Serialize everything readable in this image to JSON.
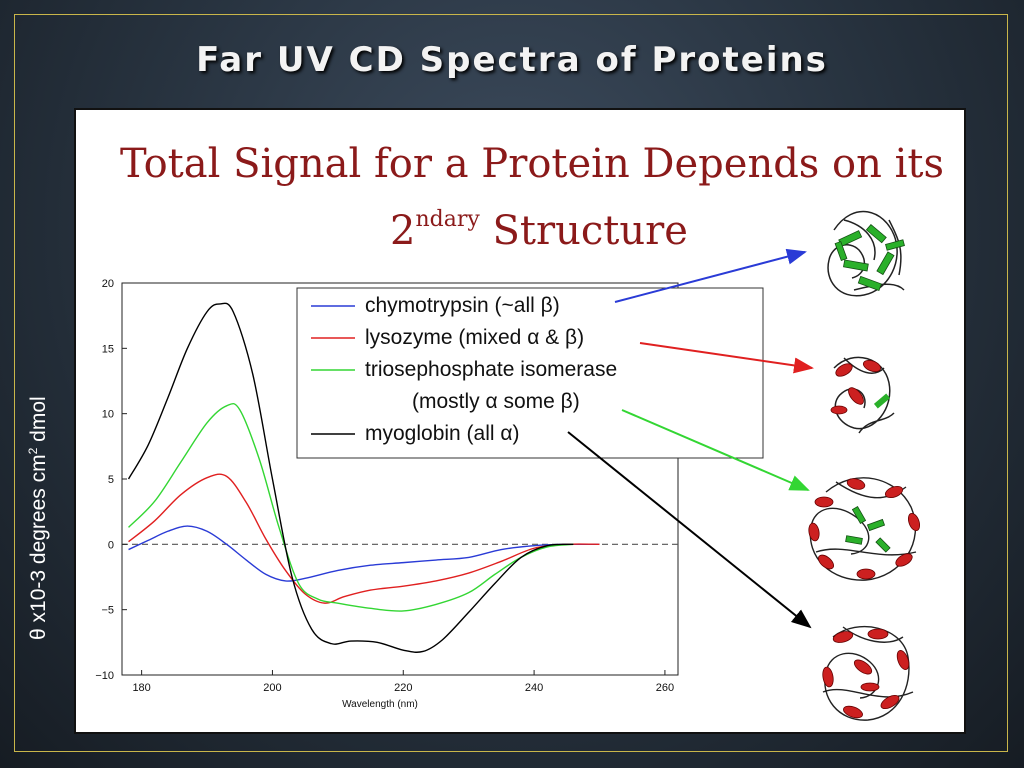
{
  "slide": {
    "title": "Far UV CD Spectra of Proteins",
    "headline_line1": "Total Signal for a Protein Depends on its",
    "headline_prefix": "2",
    "headline_sup": "ndary",
    "headline_word": "Structure"
  },
  "ylabel_parts": {
    "symbol": "θ",
    "main": "x10-3 degrees cm",
    "sup": "2",
    "tail": " dmol"
  },
  "colors": {
    "blue": "#2a3bd6",
    "red": "#e02020",
    "green": "#33d633",
    "black": "#000000",
    "title_red": "#8b1a1a"
  },
  "chart_data": {
    "type": "line",
    "title": "",
    "xlabel": "Wavelength (nm)",
    "ylabel": "θ x10-3 degrees cm2 dmol",
    "xlim": [
      177,
      262
    ],
    "ylim": [
      -10,
      20
    ],
    "xticks": [
      "180",
      "200",
      "220",
      "240",
      "260"
    ],
    "yticks": [
      "−10",
      "−5",
      "0",
      "5",
      "10",
      "15",
      "20"
    ],
    "zero_line": "dashed",
    "series": [
      {
        "name": "chymotrypsin (~all β)",
        "color": "#2a3bd6",
        "x": [
          178,
          181,
          184,
          187,
          190,
          193,
          196,
          199,
          202,
          205,
          210,
          215,
          220,
          225,
          230,
          235,
          240,
          245,
          250
        ],
        "y": [
          -0.4,
          0.3,
          1.0,
          1.4,
          1.0,
          0,
          -1.2,
          -2.3,
          -2.8,
          -2.6,
          -2.0,
          -1.6,
          -1.4,
          -1.2,
          -1.0,
          -0.4,
          -0.1,
          0,
          0
        ]
      },
      {
        "name": "lysozyme (mixed α & β)",
        "color": "#e02020",
        "x": [
          178,
          182,
          186,
          190,
          193,
          196,
          199,
          202,
          205,
          208,
          211,
          215,
          220,
          225,
          230,
          235,
          240,
          245,
          250
        ],
        "y": [
          0.2,
          1.8,
          3.8,
          5.1,
          5.2,
          3.2,
          0.4,
          -2.0,
          -3.8,
          -4.5,
          -4.0,
          -3.5,
          -3.2,
          -2.8,
          -2.2,
          -1.3,
          -0.3,
          0,
          0
        ]
      },
      {
        "name": "triosephosphate isomerase (mostly α some β)",
        "color": "#33d633",
        "x": [
          178,
          182,
          186,
          190,
          193,
          195,
          198,
          201,
          204,
          207,
          210,
          215,
          220,
          225,
          230,
          234,
          238,
          242,
          246
        ],
        "y": [
          1.3,
          3.3,
          6.3,
          9.3,
          10.6,
          10.3,
          6.5,
          1.3,
          -3.0,
          -4.2,
          -4.5,
          -4.9,
          -5.1,
          -4.6,
          -3.7,
          -2.3,
          -1.0,
          -0.2,
          0
        ]
      },
      {
        "name": "myoglobin (all α)",
        "color": "#000000",
        "x": [
          178,
          181,
          184,
          187,
          190,
          192,
          194,
          197,
          200,
          203,
          206,
          209,
          212,
          216,
          220,
          223,
          226,
          230,
          234,
          238,
          242,
          246
        ],
        "y": [
          5.0,
          7.6,
          11.2,
          15.0,
          17.8,
          18.4,
          17.8,
          13.0,
          5.0,
          -2.5,
          -6.5,
          -7.6,
          -7.4,
          -7.5,
          -8.1,
          -8.2,
          -7.3,
          -5.2,
          -3.0,
          -1.0,
          -0.1,
          0
        ]
      }
    ],
    "legend": [
      {
        "label": "chymotrypsin (~all β)",
        "color": "#2a3bd6"
      },
      {
        "label": "lysozyme (mixed α & β)",
        "color": "#e02020"
      },
      {
        "label": "triosephosphate isomerase",
        "color": "#33d633"
      },
      {
        "label": "(mostly α some β)",
        "color": ""
      },
      {
        "label": "myoglobin (all α)",
        "color": "#000000"
      }
    ],
    "legend_position": "top-right"
  }
}
